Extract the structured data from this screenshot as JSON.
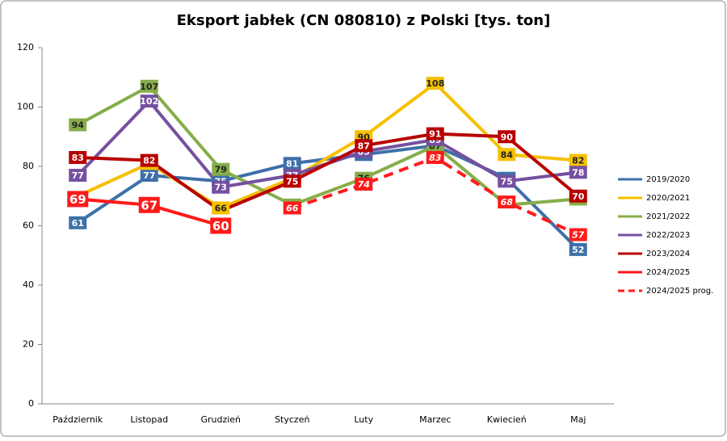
{
  "chart_data": {
    "type": "line",
    "title": "Eksport jabłek (CN 080810) z Polski [tys. ton]",
    "categories": [
      "Październik",
      "Listopad",
      "Grudzień",
      "Styczeń",
      "Luty",
      "Marzec",
      "Kwiecień",
      "Maj"
    ],
    "ylim": [
      0,
      120
    ],
    "yticks": [
      0,
      20,
      40,
      60,
      80,
      100,
      120
    ],
    "legend": "right",
    "series": [
      {
        "name": "2019/2020",
        "color": "#3e70a8",
        "values": [
          61,
          77,
          75,
          81,
          84,
          87,
          76,
          52
        ]
      },
      {
        "name": "2020/2021",
        "color": "#f6c000",
        "values": [
          70,
          81,
          66,
          76,
          90,
          108,
          84,
          82
        ],
        "value_labels": [
          null,
          "81",
          "66",
          "76",
          "90",
          "108",
          "84",
          "82"
        ]
      },
      {
        "name": "2021/2022",
        "color": "#86ad4a",
        "values": [
          94,
          107,
          79,
          67,
          76,
          87,
          67,
          69
        ],
        "value_labels": [
          "94",
          "107",
          "79",
          "67",
          "76",
          "87",
          null,
          "69"
        ]
      },
      {
        "name": "2022/2023",
        "color": "#7550a0",
        "values": [
          77,
          102,
          73,
          77,
          85,
          89,
          75,
          78
        ]
      },
      {
        "name": "2023/2024",
        "color": "#b80000",
        "values": [
          83,
          82,
          65,
          75,
          87,
          91,
          90,
          70
        ],
        "value_labels": [
          "83",
          "82",
          null,
          "75",
          "87",
          "91",
          "90",
          "70"
        ]
      },
      {
        "name": "2024/2025",
        "color": "#ff1a1a",
        "values": [
          69,
          67,
          60,
          null,
          null,
          null,
          null,
          null
        ]
      },
      {
        "name": "2024/2025 prog.",
        "color": "#ff1a1a",
        "dashed": true,
        "values": [
          null,
          null,
          null,
          66,
          74,
          83,
          68,
          57
        ]
      }
    ]
  }
}
